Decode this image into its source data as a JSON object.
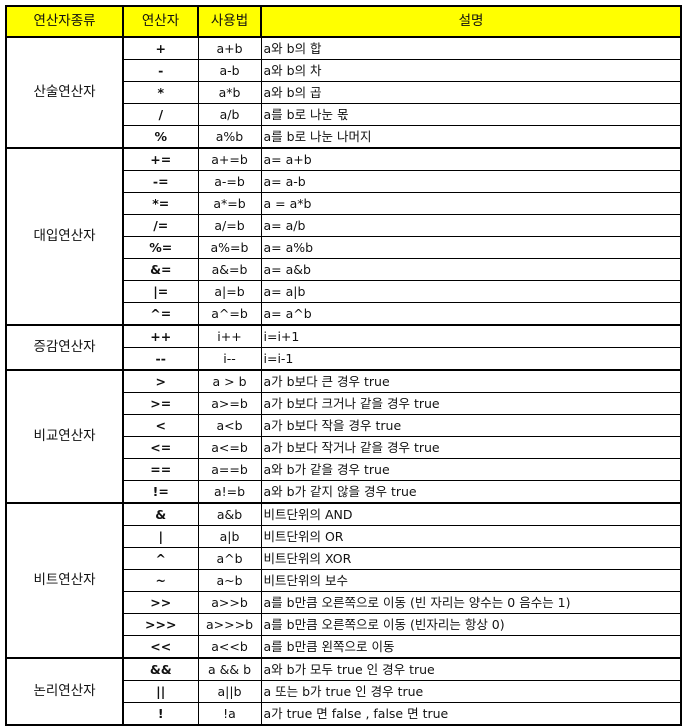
{
  "header": {
    "category": "연산자종류",
    "operator": "연산자",
    "usage": "사용법",
    "description": "설명"
  },
  "colors": {
    "header_bg": "#ffff00",
    "border": "#000000"
  },
  "groups": [
    {
      "name": "산술연산자",
      "rows": [
        {
          "op": "+",
          "use": "a+b",
          "desc": "a와 b의 합"
        },
        {
          "op": "-",
          "use": "a-b",
          "desc": "a와 b의 차"
        },
        {
          "op": "*",
          "use": "a*b",
          "desc": "a와 b의 곱"
        },
        {
          "op": "/",
          "use": "a/b",
          "desc": "a를 b로 나눈 몫"
        },
        {
          "op": "%",
          "use": "a%b",
          "desc": "a를 b로 나눈 나머지"
        }
      ]
    },
    {
      "name": "대입연산자",
      "rows": [
        {
          "op": "+=",
          "use": "a+=b",
          "desc": "a= a+b"
        },
        {
          "op": "-=",
          "use": "a-=b",
          "desc": "a= a-b"
        },
        {
          "op": "*=",
          "use": "a*=b",
          "desc": "a = a*b"
        },
        {
          "op": "/=",
          "use": "a/=b",
          "desc": "a= a/b"
        },
        {
          "op": "%=",
          "use": "a%=b",
          "desc": "a= a%b"
        },
        {
          "op": "&=",
          "use": "a&=b",
          "desc": "a= a&b"
        },
        {
          "op": "|=",
          "use": "a|=b",
          "desc": "a= a|b"
        },
        {
          "op": "^=",
          "use": "a^=b",
          "desc": "a= a^b"
        }
      ]
    },
    {
      "name": "증감연산자",
      "rows": [
        {
          "op": "++",
          "use": "i++",
          "desc": "i=i+1"
        },
        {
          "op": "--",
          "use": "i--",
          "desc": "i=i-1"
        }
      ]
    },
    {
      "name": "비교연산자",
      "rows": [
        {
          "op": ">",
          "use": "a > b",
          "desc": "a가 b보다 큰 경우 true"
        },
        {
          "op": ">=",
          "use": "a>=b",
          "desc": "a가 b보다 크거나 같을 경우 true"
        },
        {
          "op": "<",
          "use": "a<b",
          "desc": "a가 b보다 작을 경우  true"
        },
        {
          "op": "<=",
          "use": "a<=b",
          "desc": "a가 b보다 작거나 같을 경우 true"
        },
        {
          "op": "==",
          "use": "a==b",
          "desc": "a와 b가 같을 경우 true"
        },
        {
          "op": "!=",
          "use": "a!=b",
          "desc": "a와 b가 같지 않을 경우 true"
        }
      ]
    },
    {
      "name": "비트연산자",
      "rows": [
        {
          "op": "&",
          "use": "a&b",
          "desc": "비트단위의 AND"
        },
        {
          "op": "|",
          "use": "a|b",
          "desc": "비트단위의 OR"
        },
        {
          "op": "^",
          "use": "a^b",
          "desc": "비트단위의 XOR"
        },
        {
          "op": "~",
          "use": "a~b",
          "desc": "비트단위의 보수"
        },
        {
          "op": ">>",
          "use": "a>>b",
          "desc": "a를 b만큼 오른쪽으로 이동 (빈 자리는 양수는 0 음수는 1)"
        },
        {
          "op": ">>>",
          "use": "a>>>b",
          "desc": "a를 b만큼 오른쪽으로 이동 (빈자리는 항상 0)"
        },
        {
          "op": "<<",
          "use": "a<<b",
          "desc": "a를 b만큼 왼쪽으로 이동"
        }
      ]
    },
    {
      "name": "논리연산자",
      "rows": [
        {
          "op": "&&",
          "use": "a && b",
          "desc": "a와 b가 모두 true 인 경우 true"
        },
        {
          "op": "||",
          "use": "a||b",
          "desc": "a 또는 b가 true 인 경우 true"
        },
        {
          "op": "!",
          "use": "!a",
          "desc": "a가 true 면 false , false 면 true"
        }
      ]
    }
  ]
}
